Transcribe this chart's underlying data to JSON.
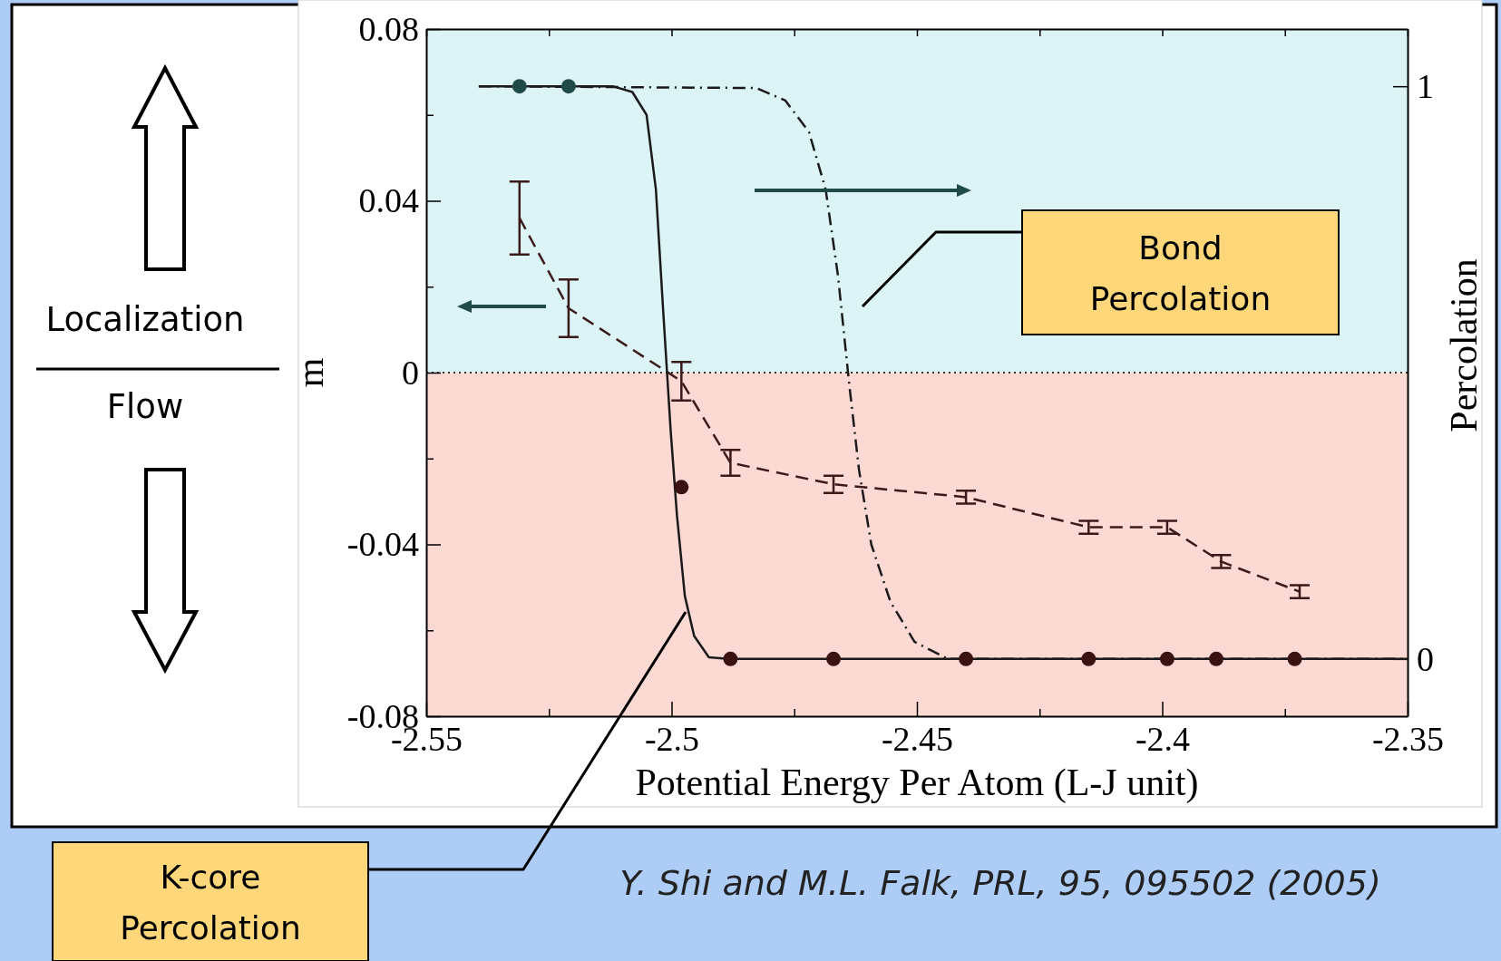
{
  "chart_data": {
    "type": "line",
    "xlabel": "Potential Energy Per Atom (L-J unit)",
    "ylabel": "m",
    "y2label": "Percolation",
    "xlim": [
      -2.55,
      -2.35
    ],
    "xticks": [
      -2.55,
      {
        "value": -2.525,
        "label": null
      },
      -2.5,
      {
        "value": -2.475,
        "label": null
      },
      -2.45,
      {
        "value": -2.425,
        "label": null
      },
      -2.4,
      {
        "value": -2.375,
        "label": null
      },
      -2.35
    ],
    "ylim": [
      -0.08,
      0.08
    ],
    "yticks": [
      -0.08,
      {
        "value": -0.06,
        "label": null
      },
      -0.04,
      {
        "value": -0.02,
        "label": null
      },
      0,
      {
        "value": 0.02,
        "label": null
      },
      0.04,
      {
        "value": 0.06,
        "label": null
      },
      0.08
    ],
    "y2lim": [
      -0.1,
      1.1
    ],
    "y2ticks": [
      0,
      1
    ],
    "series": [
      {
        "type": "line",
        "line_style": "dashed",
        "marker": "none",
        "color": "#3a1a1a",
        "x": [
          -2.531,
          -2.521,
          -2.498,
          -2.488,
          -2.467,
          -2.44,
          -2.415,
          -2.399,
          -2.388,
          -2.372
        ],
        "values": [
          0.036,
          0.015,
          -0.002,
          -0.021,
          -0.026,
          -0.029,
          -0.036,
          -0.036,
          -0.044,
          -0.051
        ],
        "errors": [
          0.0085,
          0.0067,
          0.0045,
          0.003,
          0.002,
          0.0015,
          0.0015,
          0.0015,
          0.0015,
          0.0015
        ]
      },
      {
        "type": "line",
        "axis": "y2",
        "line_style": "solid",
        "marker": "none",
        "color": "#1a1a1a",
        "x": [
          -2.5393,
          -2.512,
          -2.508,
          -2.5051,
          -2.5032,
          -2.5018,
          -2.5002,
          -2.4989,
          -2.4973,
          -2.4954,
          -2.4924,
          -2.4885,
          -2.35
        ],
        "values": [
          1,
          1,
          0.99,
          0.95,
          0.82,
          0.62,
          0.4,
          0.25,
          0.11,
          0.04,
          0.003,
          0,
          0
        ]
      },
      {
        "type": "line",
        "axis": "y2",
        "line_style": "dashdot",
        "marker": "none",
        "color": "#1a1a1a",
        "x": [
          -2.5393,
          -2.4827,
          -2.4768,
          -2.472,
          -2.4686,
          -2.4661,
          -2.4638,
          -2.4618,
          -2.4593,
          -2.4554,
          -2.4505,
          -2.4437,
          -2.35
        ],
        "values": [
          1,
          0.997,
          0.975,
          0.92,
          0.82,
          0.67,
          0.48,
          0.33,
          0.2,
          0.1,
          0.03,
          0,
          0
        ]
      },
      {
        "type": "scatter",
        "axis": "y2",
        "marker": "circle",
        "x": [
          -2.531,
          -2.521,
          -2.498,
          -2.488,
          -2.467,
          -2.44,
          -2.415,
          -2.399,
          -2.389,
          -2.373
        ],
        "values": [
          1,
          1,
          0.3,
          0,
          0,
          0,
          0,
          0,
          0,
          0
        ],
        "colors": [
          "#1f4a48",
          "#1f4a48",
          "#3a1212",
          "#3a1212",
          "#3a1212",
          "#3a1212",
          "#3a1212",
          "#3a1212",
          "#3a1212",
          "#3a1212"
        ]
      }
    ],
    "bands": [
      {
        "axis": "y",
        "from": 0,
        "to": 0.08,
        "color": "#dcf4f6"
      },
      {
        "axis": "y",
        "from": -0.08,
        "to": 0,
        "color": "#fdd9d3"
      }
    ],
    "ref_lines": [
      {
        "axis": "y",
        "value": 0,
        "line_style": "dotted",
        "color": "#333333"
      }
    ],
    "annotations": [
      "Localization",
      "Flow",
      "Bond Percolation",
      "K-core Percolation",
      "Y. Shi and M.L. Falk, PRL, 95, 095502 (2005)"
    ]
  }
}
